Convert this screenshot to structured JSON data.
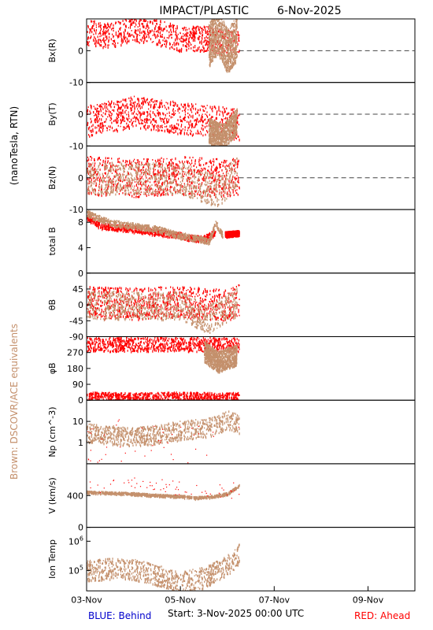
{
  "title": "IMPACT/PLASTIC",
  "date": "6-Nov-2025",
  "left_label": "(nanoTesla, RTN)",
  "left_label_secondary": "Brown: DSCOVR/ACE equivalents",
  "footer": {
    "behind": "BLUE: Behind",
    "start": "Start:   3-Nov-2025 00:00 UTC",
    "ahead": "RED: Ahead"
  },
  "colors": {
    "ahead": "#ff0000",
    "equiv": "#c4906c",
    "behind": "#0000cc",
    "axis": "#000000"
  },
  "chart_data": {
    "type": "scatter",
    "x_axis": {
      "range": [
        "2025-11-03",
        "2025-11-10"
      ],
      "ticks": [
        "03-Nov",
        "05-Nov",
        "07-Nov",
        "09-Nov"
      ],
      "data_end": "2025-11-06 06:00"
    },
    "panels": [
      {
        "id": "bx",
        "ylabel": "Bx(R)",
        "ylim": [
          -10,
          10
        ],
        "yticks": [
          "0",
          "-10"
        ],
        "dashed_zero": true,
        "series": [
          {
            "name": "RED: Ahead",
            "color": "ahead",
            "trend_x": [
              0,
              0.5,
              1,
              1.5,
              2,
              2.5,
              2.9,
              3.25
            ],
            "trend_y": [
              6,
              5,
              7,
              6,
              4,
              4,
              3,
              3
            ],
            "spread": 4
          },
          {
            "name": "Brown: DSCOVR/ACE equivalents",
            "color": "equiv",
            "trend_x": [
              2.6,
              2.8,
              3.0,
              3.2
            ],
            "trend_y": [
              2,
              6,
              0,
              4
            ],
            "spread": 7
          }
        ]
      },
      {
        "id": "by",
        "ylabel": "By(T)",
        "ylim": [
          -10,
          10
        ],
        "yticks": [
          "0",
          "-10"
        ],
        "dashed_zero": true,
        "series": [
          {
            "name": "RED: Ahead",
            "color": "ahead",
            "trend_x": [
              0,
              1,
              2,
              2.6,
              3.25
            ],
            "trend_y": [
              -2,
              1,
              -1,
              -2,
              -3
            ],
            "spread": 5
          },
          {
            "name": "Brown: DSCOVR/ACE equivalents",
            "color": "equiv",
            "trend_x": [
              2.6,
              2.9,
              3.2
            ],
            "trend_y": [
              -5,
              -7,
              -2
            ],
            "spread": 4
          }
        ]
      },
      {
        "id": "bz",
        "ylabel": "Bz(N)",
        "ylim": [
          -10,
          10
        ],
        "yticks": [
          "0",
          "-10"
        ],
        "dashed_zero": true,
        "series": [
          {
            "name": "RED: Ahead",
            "color": "ahead",
            "trend_x": [
              0,
              1,
              2,
              3,
              3.25
            ],
            "trend_y": [
              1,
              0,
              1,
              0,
              1
            ],
            "spread": 6
          },
          {
            "name": "Brown: DSCOVR/ACE equivalents",
            "color": "equiv",
            "trend_x": [
              0,
              1,
              2,
              2.8,
              3.2
            ],
            "trend_y": [
              0,
              0,
              0,
              -4,
              2
            ],
            "spread": 5
          }
        ]
      },
      {
        "id": "btot",
        "ylabel": "total B",
        "ylim": [
          0,
          10
        ],
        "yticks": [
          "0",
          "4",
          "8"
        ],
        "dashed_zero": false,
        "series": [
          {
            "name": "RED: Ahead",
            "color": "ahead",
            "trend_x": [
              0,
              0.3,
              1,
              1.5,
              2,
              2.3,
              2.5,
              2.75
            ],
            "trend_y": [
              9,
              7.5,
              7,
              6.5,
              6,
              5.5,
              5.5,
              6.5
            ],
            "spread": 0.5,
            "gap": [
              2.75,
              2.95
            ]
          },
          {
            "name": "RED: Ahead",
            "color": "ahead",
            "trend_x": [
              2.95,
              3.25
            ],
            "trend_y": [
              6.2,
              6.4
            ],
            "spread": 0.4
          },
          {
            "name": "Brown: DSCOVR/ACE equivalents",
            "color": "equiv",
            "trend_x": [
              0,
              0.5,
              1,
              1.5,
              2,
              2.4,
              2.6,
              2.75,
              2.9
            ],
            "trend_y": [
              9.5,
              8,
              7.5,
              7,
              6,
              5.5,
              5,
              8,
              6
            ],
            "spread": 0.5
          }
        ]
      },
      {
        "id": "theta",
        "ylabel": "θB",
        "ylim": [
          -90,
          90
        ],
        "yticks": [
          "45",
          "0",
          "-45",
          "-90"
        ],
        "dashed_zero": false,
        "series": [
          {
            "name": "RED: Ahead",
            "color": "ahead",
            "trend_x": [
              0,
              1,
              2,
              3,
              3.25
            ],
            "trend_y": [
              10,
              5,
              10,
              0,
              15
            ],
            "spread": 45
          },
          {
            "name": "Brown: DSCOVR/ACE equivalents",
            "color": "equiv",
            "trend_x": [
              0,
              1,
              2,
              2.6,
              3.2
            ],
            "trend_y": [
              0,
              0,
              0,
              -40,
              10
            ],
            "spread": 40
          }
        ]
      },
      {
        "id": "phi",
        "ylabel": "φB",
        "ylim": [
          0,
          360
        ],
        "yticks": [
          "270",
          "180",
          "90",
          "0"
        ],
        "dashed_zero": false,
        "series": [
          {
            "name": "RED: Ahead",
            "color": "ahead",
            "trend_x": [
              0,
              1,
              2,
              3,
              3.25
            ],
            "trend_y": [
              320,
              320,
              320,
              320,
              320
            ],
            "spread": 40
          },
          {
            "name": "RED: Ahead",
            "color": "ahead",
            "trend_x": [
              0,
              1,
              2,
              3,
              3.25
            ],
            "trend_y": [
              25,
              20,
              25,
              20,
              25
            ],
            "spread": 25
          },
          {
            "name": "Brown: DSCOVR/ACE equivalents",
            "color": "equiv",
            "trend_x": [
              2.5,
              2.8,
              3.2
            ],
            "trend_y": [
              280,
              220,
              260
            ],
            "spread": 60
          }
        ]
      },
      {
        "id": "np",
        "ylabel": "Np (cm^-3)",
        "ylim": [
          0.1,
          100
        ],
        "log": true,
        "yticks": [
          "10",
          "1"
        ],
        "dashed_zero": false,
        "series": [
          {
            "name": "Brown: DSCOVR/ACE equivalents",
            "color": "equiv",
            "trend_x": [
              0,
              0.5,
              1,
              1.5,
              2,
              2.5,
              2.8,
              3.0,
              3.25
            ],
            "trend_y": [
              3,
              2.5,
              2,
              2.5,
              4,
              5,
              7,
              12,
              8
            ],
            "spread": 0.15
          },
          {
            "name": "RED: Ahead",
            "color": "ahead",
            "trend_x": [
              0,
              1,
              2,
              3,
              3.25
            ],
            "trend_y": [
              1,
              0.8,
              0.7,
              0.5,
              1
            ],
            "spread": 0.4,
            "sparse": true
          }
        ]
      },
      {
        "id": "v",
        "ylabel": "V (km/s)",
        "ylim": [
          0,
          800
        ],
        "yticks": [
          "400",
          "0"
        ],
        "dashed_zero": false,
        "series": [
          {
            "name": "Brown: DSCOVR/ACE equivalents",
            "color": "equiv",
            "trend_x": [
              0,
              0.5,
              1,
              1.5,
              2,
              2.3,
              2.6,
              3.0,
              3.25
            ],
            "trend_y": [
              450,
              440,
              430,
              410,
              400,
              380,
              390,
              430,
              530
            ],
            "spread": 15
          },
          {
            "name": "RED: Ahead",
            "color": "ahead",
            "trend_x": [
              0,
              1,
              2,
              3,
              3.25
            ],
            "trend_y": [
              500,
              550,
              500,
              450,
              500
            ],
            "spread": 100,
            "sparse": true
          }
        ]
      },
      {
        "id": "temp",
        "ylabel": "Ion Temp",
        "ylim": [
          20000,
          3000000
        ],
        "log": true,
        "yticks": [
          "10^6",
          "10^5"
        ],
        "dashed_zero": false,
        "series": [
          {
            "name": "Brown: DSCOVR/ACE equivalents",
            "color": "equiv",
            "trend_x": [
              0,
              0.5,
              1,
              1.5,
              2,
              2.5,
              2.8,
              3.1,
              3.25
            ],
            "trend_y": [
              100000,
              120000,
              110000,
              70000,
              40000,
              60000,
              100000,
              200000,
              400000
            ],
            "spread": 0.12
          }
        ]
      }
    ]
  }
}
